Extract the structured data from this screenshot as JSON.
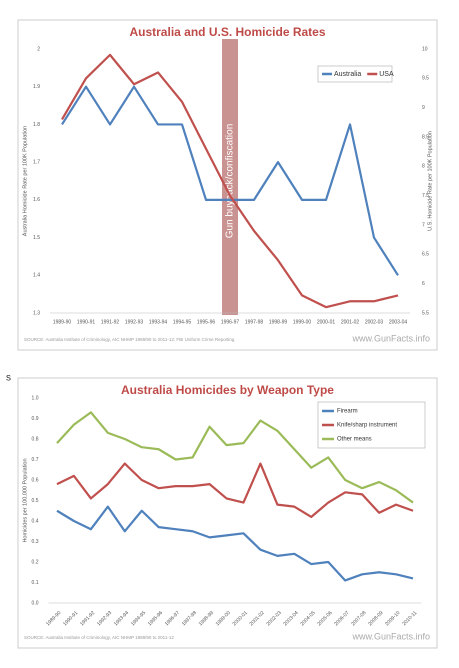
{
  "fragment": "s",
  "chart_data": [
    {
      "type": "line",
      "title": "Australia and U.S. Homicide Rates",
      "categories": [
        "1989-90",
        "1990-91",
        "1991-92",
        "1992-93",
        "1993-94",
        "1994-95",
        "1995-96",
        "1996-97",
        "1997-98",
        "1998-99",
        "1999-00",
        "2000-01",
        "2001-02",
        "2002-03",
        "2003-04"
      ],
      "series": [
        {
          "name": "Australia",
          "color": "#4f81bd",
          "values": [
            1.8,
            1.9,
            1.8,
            1.9,
            1.8,
            1.8,
            1.6,
            1.6,
            1.6,
            1.7,
            1.6,
            1.6,
            1.8,
            1.5,
            1.4
          ]
        },
        {
          "name": "USA",
          "color": "#c0504d",
          "axis": "y2",
          "values": [
            8.8,
            9.5,
            9.9,
            9.4,
            9.6,
            9.1,
            8.3,
            7.5,
            6.9,
            6.4,
            5.8,
            5.6,
            5.7,
            5.7,
            5.8
          ]
        }
      ],
      "ylim": [
        1.3,
        2
      ],
      "yticks": [
        2,
        1.9,
        1.8,
        1.7,
        1.6,
        1.5,
        1.4,
        1.3
      ],
      "y2lim": [
        5.5,
        10
      ],
      "y2ticks": [
        10,
        9.5,
        9,
        8.5,
        8,
        7.5,
        7,
        6.5,
        6,
        5.5
      ],
      "ylabel": "Australia Homicide Rate per 100K Population",
      "y2label": "U.S. Homicide Rate per 100K Population",
      "annotations": [
        {
          "text": "Gun buyback/confiscation",
          "x": "1996-97",
          "color": "#c0807f"
        }
      ],
      "grid": false,
      "legend": "top-right",
      "source": "SOURCE: Australia Institute of Criminology, AIC NHMP 1989/90 to 2011-12; FBI Uniform Crime Reporting",
      "watermark": "www.GunFacts.info"
    },
    {
      "type": "line",
      "title": "Australia Homicides by Weapon Type",
      "categories": [
        "1989-90",
        "1990-91",
        "1991-92",
        "1992-93",
        "1993-94",
        "1994-95",
        "1995-96",
        "1996-97",
        "1997-98",
        "1998-99",
        "1999-00",
        "2000-01",
        "2001-02",
        "2002-03",
        "2003-04",
        "2004-05",
        "2005-06",
        "2006-07",
        "2007-08",
        "2008-09",
        "2009-10",
        "2010-11"
      ],
      "series": [
        {
          "name": "Firearm",
          "color": "#4f81bd",
          "values": [
            0.45,
            0.4,
            0.36,
            0.47,
            0.35,
            0.45,
            0.37,
            0.36,
            0.35,
            0.32,
            0.33,
            0.34,
            0.26,
            0.23,
            0.24,
            0.19,
            0.2,
            0.11,
            0.14,
            0.15,
            0.14,
            0.12
          ]
        },
        {
          "name": "Knife/sharp instrument",
          "color": "#c0504d",
          "values": [
            0.58,
            0.62,
            0.51,
            0.58,
            0.68,
            0.6,
            0.56,
            0.57,
            0.57,
            0.58,
            0.51,
            0.49,
            0.68,
            0.48,
            0.47,
            0.42,
            0.49,
            0.54,
            0.53,
            0.44,
            0.48,
            0.45
          ]
        },
        {
          "name": "Other means",
          "color": "#9bbb59",
          "values": [
            0.78,
            0.87,
            0.93,
            0.83,
            0.8,
            0.76,
            0.75,
            0.7,
            0.71,
            0.86,
            0.77,
            0.78,
            0.89,
            0.84,
            0.75,
            0.66,
            0.71,
            0.6,
            0.56,
            0.59,
            0.55,
            0.49
          ]
        }
      ],
      "ylim": [
        0,
        1
      ],
      "yticks": [
        {
          "value": 1,
          "label": "1.0"
        },
        {
          "value": 0.9,
          "label": "0.9"
        },
        {
          "value": 0.8,
          "label": "0.8"
        },
        {
          "value": 0.7,
          "label": "0.7"
        },
        {
          "value": 0.6,
          "label": "0.6"
        },
        {
          "value": 0.5,
          "label": "0.5"
        },
        {
          "value": 0.4,
          "label": "0.4"
        },
        {
          "value": 0.3,
          "label": "0.3"
        },
        {
          "value": 0.2,
          "label": "0.2"
        },
        {
          "value": 0.1,
          "label": "0.1"
        },
        {
          "value": 0,
          "label": "0.0"
        }
      ],
      "ylabel": "Homicides per 100,000 Population",
      "grid": false,
      "legend": "top-right",
      "source": "SOURCE: Australia Institute of Criminology, AIC NHMP 1989/90 to 2011-12",
      "watermark": "www.GunFacts.info"
    }
  ]
}
